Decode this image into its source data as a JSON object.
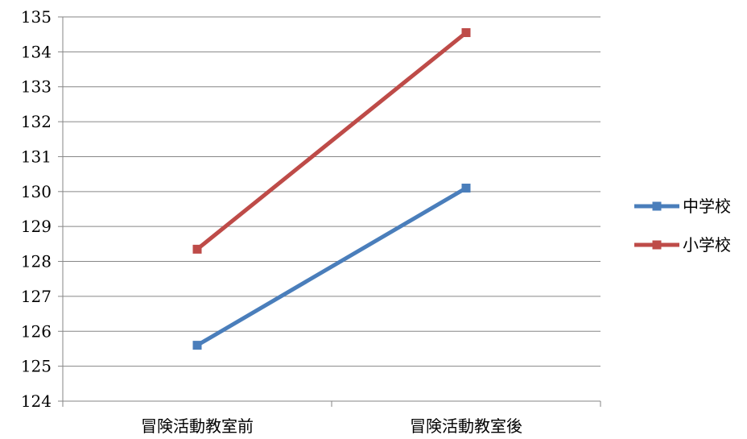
{
  "chart_data": {
    "type": "line",
    "categories": [
      "冒険活動教室前",
      "冒険活動教室後"
    ],
    "series": [
      {
        "name": "中学校",
        "values": [
          125.6,
          130.1
        ],
        "color": "#4A7EBB"
      },
      {
        "name": "小学校",
        "values": [
          128.35,
          134.55
        ],
        "color": "#BE4B48"
      }
    ],
    "ylim": [
      124,
      135
    ],
    "yticks": [
      124,
      125,
      126,
      127,
      128,
      129,
      130,
      131,
      132,
      133,
      134,
      135
    ],
    "grid": true,
    "legend_position": "right",
    "marker": "square"
  }
}
